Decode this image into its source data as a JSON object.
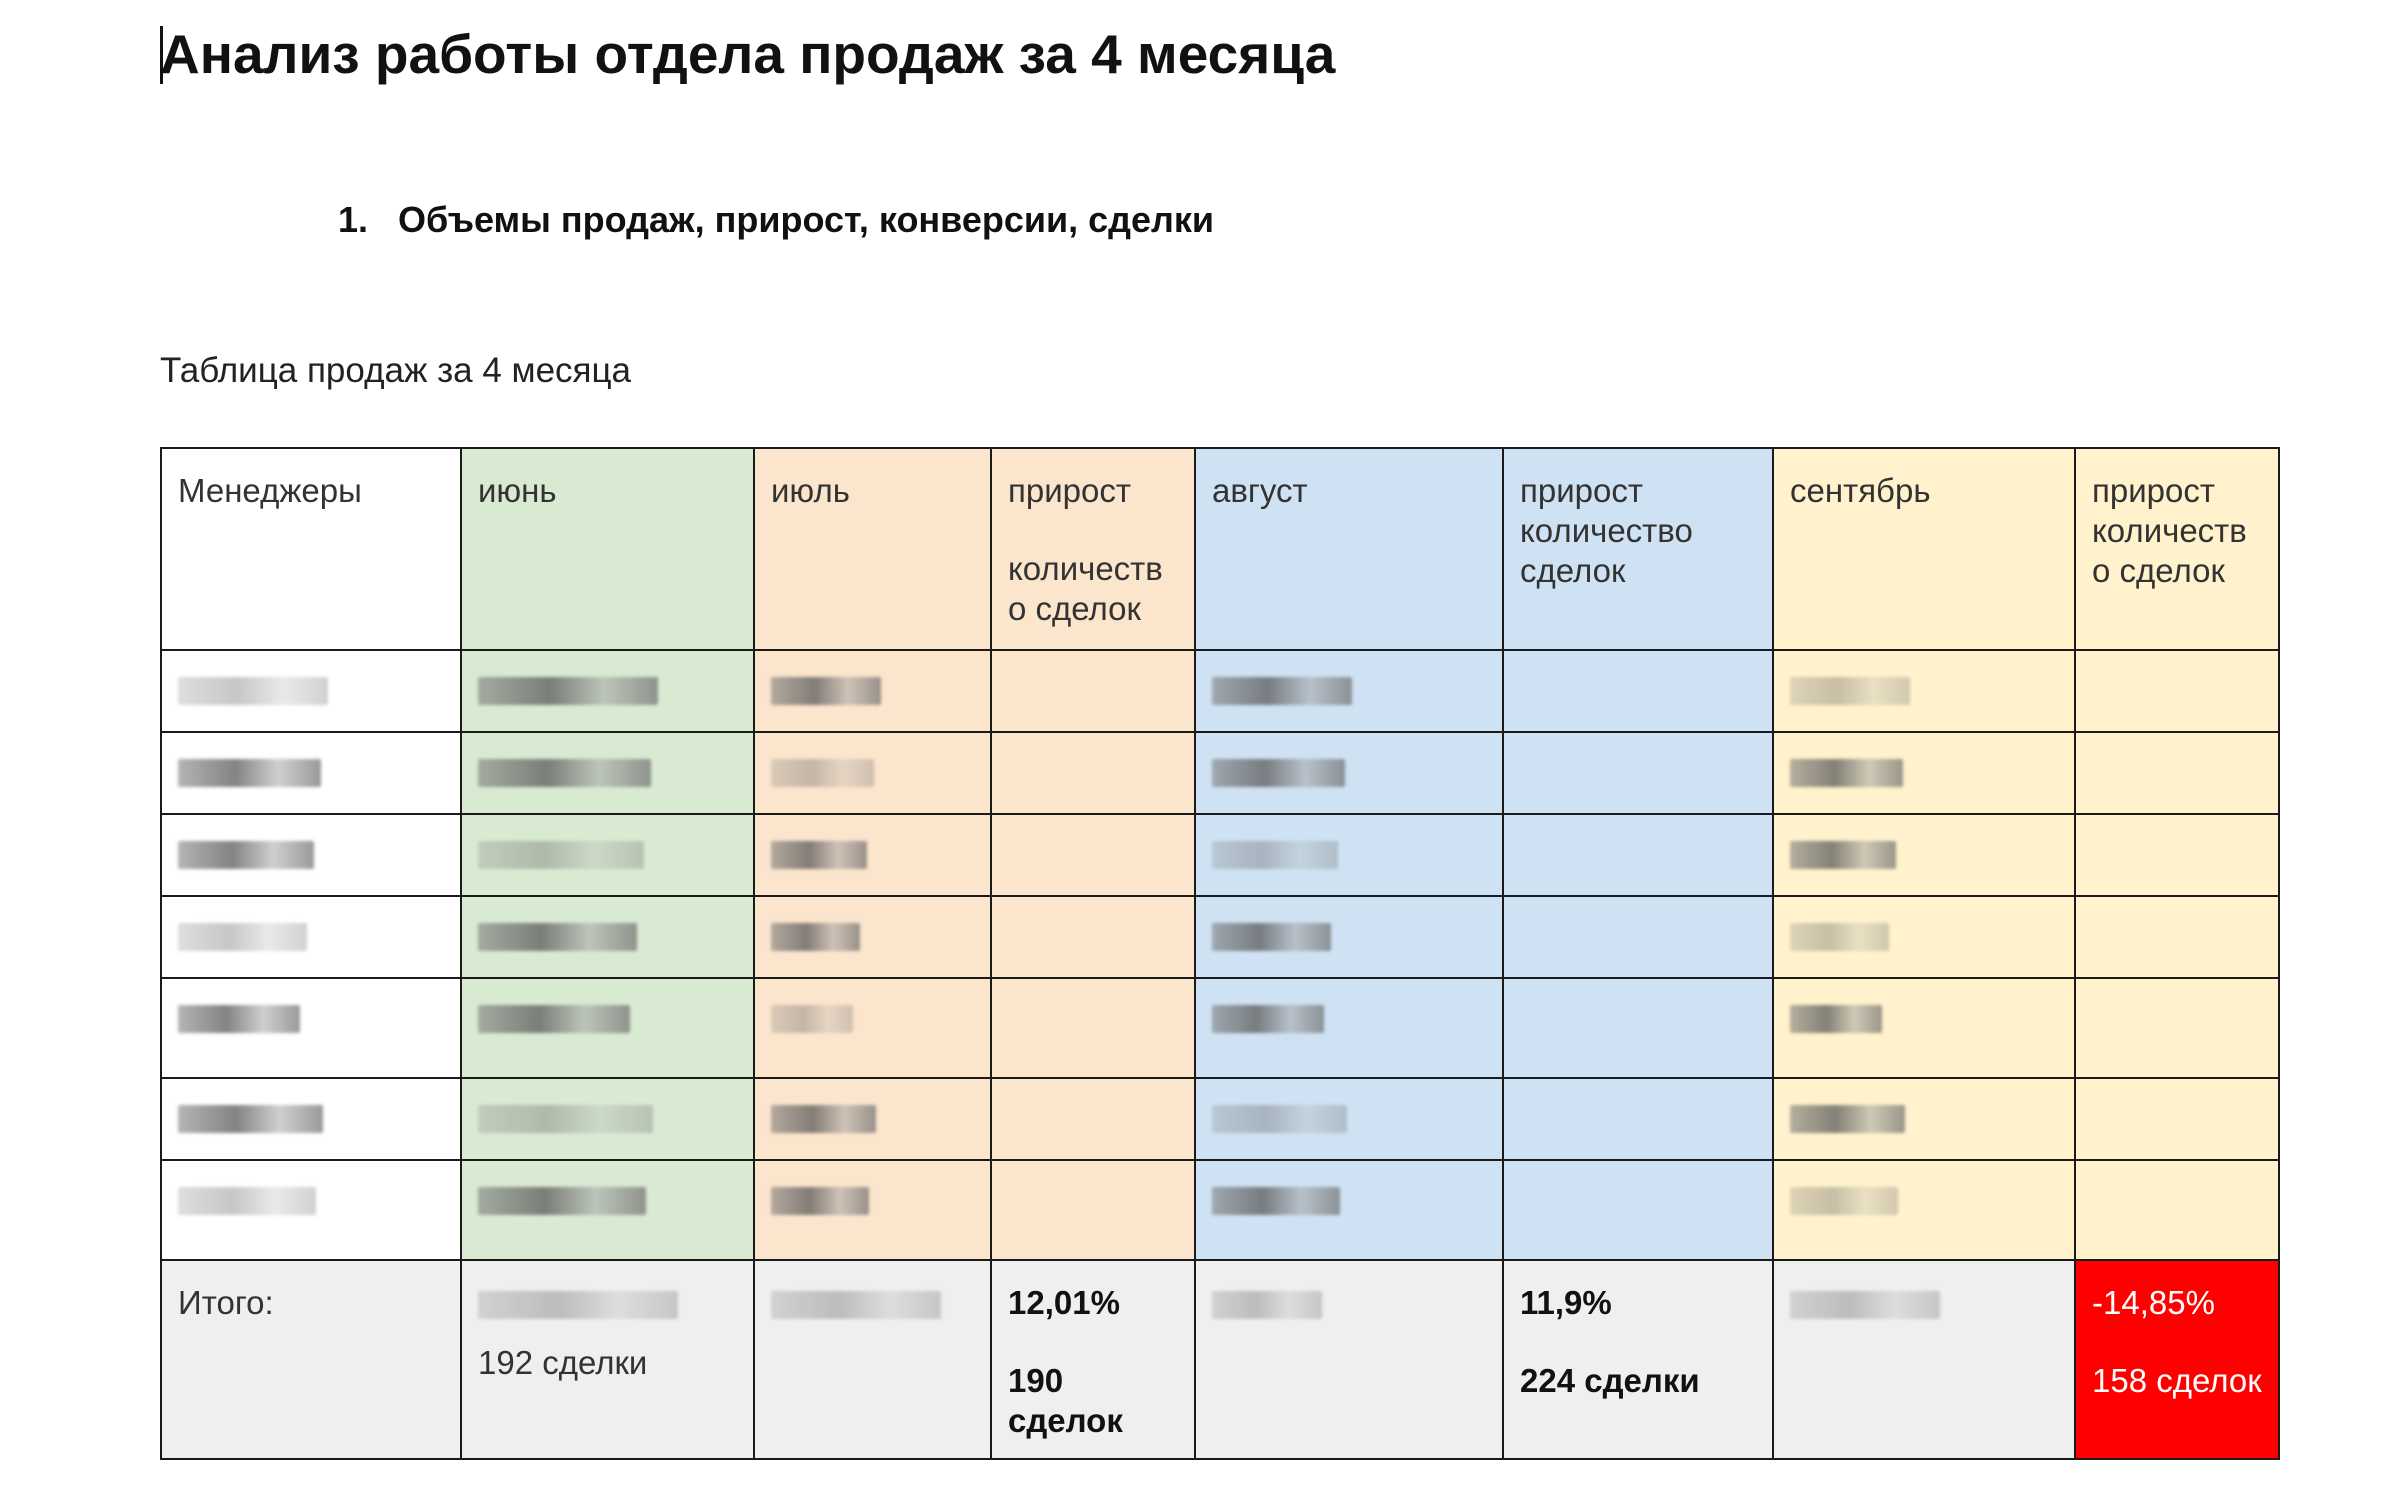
{
  "document": {
    "title": "Анализ работы отдела продаж за 4 месяца",
    "section_number": "1.",
    "section_title": "Объемы продаж, прирост, конверсии, сделки",
    "table_caption": "Таблица продаж за 4 месяца"
  },
  "table": {
    "headers": {
      "managers": "Менеджеры",
      "june": "июнь",
      "july": "июль",
      "growth_july_line1": "прирост",
      "growth_july_line2": "количеств о сделок",
      "august": "август",
      "growth_august": "прирост количество сделок",
      "september": "сентябрь",
      "growth_september": "прирост количеств о сделок"
    },
    "rows_note": "manager rows are redacted (blurred) in the original",
    "row_count": 7,
    "totals": {
      "label": "Итого:",
      "june_deals": "192 сделки",
      "growth_july_pct": "12,01%",
      "growth_july_deals": "190 сделок",
      "growth_august_pct": "11,9%",
      "growth_august_deals": "224 сделки",
      "growth_september_pct": "-14,85%",
      "growth_september_deals": "158 сделок"
    }
  },
  "colors": {
    "june": "#d9ead3",
    "july": "#fce5cd",
    "august": "#cfe2f3",
    "september": "#fff2cc",
    "totals_row": "#efefef",
    "negative": "#ff0000"
  }
}
